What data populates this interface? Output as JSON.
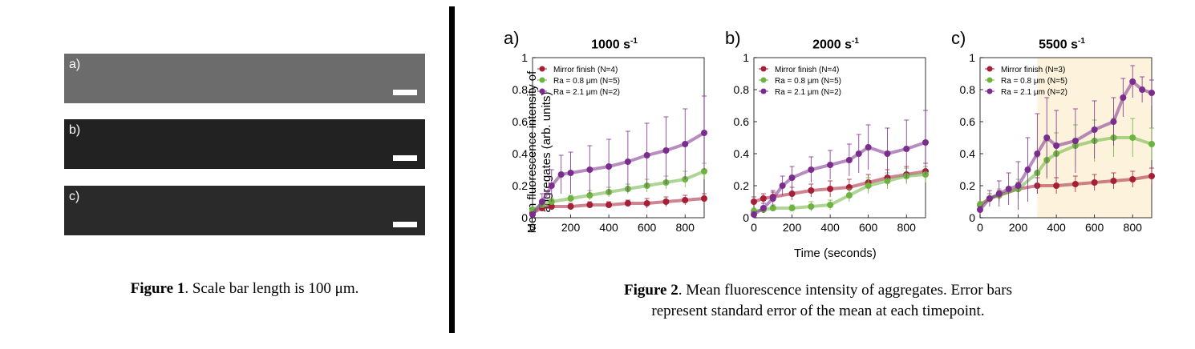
{
  "figure1": {
    "panels": [
      {
        "label": "a)",
        "tone": "#6a6a6a"
      },
      {
        "label": "b)",
        "tone": "#2a2a2a"
      },
      {
        "label": "c)",
        "tone": "#303030"
      }
    ],
    "caption_bold": "Figure 1",
    "caption_text": ". Scale bar length is 100 μm."
  },
  "figure2": {
    "ylabel": "Mean fluorescence intensity of aggregates (arb. units)",
    "xlabel": "Time (seconds)",
    "caption_bold": "Figure 2",
    "caption_line1": ". Mean fluorescence intensity of aggregates. Error bars",
    "caption_line2": "represent standard error of the mean at each timepoint.",
    "colors": {
      "mirror": "#a51f36",
      "ra08": "#6cb33f",
      "ra21": "#7b2d8e",
      "shade": "#fdf3dc"
    }
  },
  "chart_data": [
    {
      "type": "scatter",
      "panel_label": "a)",
      "title_base": "1000 s",
      "title_exp": "-1",
      "xlim": [
        0,
        900
      ],
      "ylim": [
        0,
        1
      ],
      "xticks": [
        0,
        200,
        400,
        600,
        800
      ],
      "yticks": [
        0,
        0.2,
        0.4,
        0.6,
        0.8,
        1
      ],
      "shaded_from": null,
      "series": [
        {
          "name": "Mirror finish (N=4)",
          "key": "mirror",
          "x": [
            0,
            50,
            100,
            200,
            300,
            400,
            500,
            600,
            700,
            800,
            900
          ],
          "y": [
            0.03,
            0.06,
            0.07,
            0.07,
            0.08,
            0.08,
            0.09,
            0.09,
            0.1,
            0.11,
            0.12
          ],
          "err": [
            0.01,
            0.01,
            0.02,
            0.02,
            0.02,
            0.02,
            0.02,
            0.03,
            0.03,
            0.03,
            0.03
          ]
        },
        {
          "name": "Ra = 0.8 μm (N=5)",
          "key": "ra08",
          "x": [
            0,
            50,
            100,
            200,
            300,
            400,
            500,
            600,
            700,
            800,
            900
          ],
          "y": [
            0.05,
            0.08,
            0.1,
            0.12,
            0.14,
            0.16,
            0.18,
            0.2,
            0.22,
            0.24,
            0.29
          ],
          "err": [
            0.01,
            0.02,
            0.02,
            0.02,
            0.03,
            0.03,
            0.03,
            0.04,
            0.04,
            0.05,
            0.05
          ]
        },
        {
          "name": "Ra = 2.1 μm (N=2)",
          "key": "ra21",
          "x": [
            0,
            50,
            100,
            150,
            200,
            300,
            400,
            500,
            600,
            700,
            800,
            900
          ],
          "y": [
            0.02,
            0.1,
            0.2,
            0.27,
            0.28,
            0.3,
            0.32,
            0.35,
            0.39,
            0.42,
            0.46,
            0.53
          ],
          "err": [
            0.01,
            0.05,
            0.1,
            0.12,
            0.13,
            0.15,
            0.17,
            0.19,
            0.2,
            0.21,
            0.22,
            0.23
          ]
        }
      ]
    },
    {
      "type": "scatter",
      "panel_label": "b)",
      "title_base": "2000 s",
      "title_exp": "-1",
      "xlim": [
        0,
        900
      ],
      "ylim": [
        0,
        1
      ],
      "xticks": [
        0,
        200,
        400,
        600,
        800
      ],
      "yticks": [
        0,
        0.2,
        0.4,
        0.6,
        0.8,
        1
      ],
      "shaded_from": null,
      "series": [
        {
          "name": "Mirror finish (N=4)",
          "key": "mirror",
          "x": [
            0,
            50,
            100,
            200,
            300,
            400,
            500,
            600,
            700,
            800,
            900
          ],
          "y": [
            0.1,
            0.12,
            0.13,
            0.15,
            0.17,
            0.18,
            0.19,
            0.22,
            0.25,
            0.27,
            0.29
          ],
          "err": [
            0.03,
            0.03,
            0.03,
            0.04,
            0.04,
            0.05,
            0.05,
            0.05,
            0.05,
            0.05,
            0.05
          ]
        },
        {
          "name": "Ra = 0.8 μm (N=5)",
          "key": "ra08",
          "x": [
            0,
            50,
            100,
            200,
            300,
            400,
            500,
            600,
            700,
            800,
            900
          ],
          "y": [
            0.04,
            0.05,
            0.06,
            0.06,
            0.07,
            0.08,
            0.14,
            0.2,
            0.23,
            0.26,
            0.27
          ],
          "err": [
            0.02,
            0.02,
            0.02,
            0.02,
            0.03,
            0.03,
            0.04,
            0.05,
            0.05,
            0.05,
            0.05
          ]
        },
        {
          "name": "Ra = 2.1 μm (N=2)",
          "key": "ra21",
          "x": [
            0,
            50,
            100,
            150,
            200,
            300,
            400,
            500,
            550,
            600,
            700,
            800,
            900
          ],
          "y": [
            0.02,
            0.06,
            0.12,
            0.2,
            0.25,
            0.3,
            0.33,
            0.36,
            0.4,
            0.44,
            0.4,
            0.43,
            0.47
          ],
          "err": [
            0.01,
            0.03,
            0.05,
            0.06,
            0.07,
            0.08,
            0.09,
            0.1,
            0.12,
            0.14,
            0.16,
            0.18,
            0.2
          ]
        }
      ]
    },
    {
      "type": "scatter",
      "panel_label": "c)",
      "title_base": "5500 s",
      "title_exp": "-1",
      "xlim": [
        0,
        900
      ],
      "ylim": [
        0,
        1
      ],
      "xticks": [
        0,
        200,
        400,
        600,
        800
      ],
      "yticks": [
        0,
        0.2,
        0.4,
        0.6,
        0.8,
        1
      ],
      "shaded_from": 300,
      "series": [
        {
          "name": "Mirror finish (N=3)",
          "key": "mirror",
          "x": [
            0,
            50,
            100,
            200,
            300,
            400,
            500,
            600,
            700,
            800,
            900
          ],
          "y": [
            0.08,
            0.12,
            0.14,
            0.18,
            0.2,
            0.2,
            0.21,
            0.22,
            0.23,
            0.24,
            0.26
          ],
          "err": [
            0.02,
            0.03,
            0.03,
            0.04,
            0.05,
            0.05,
            0.05,
            0.05,
            0.05,
            0.05,
            0.05
          ]
        },
        {
          "name": "Ra = 0.8 μm (N=5)",
          "key": "ra08",
          "x": [
            0,
            50,
            100,
            200,
            300,
            350,
            400,
            500,
            600,
            700,
            800,
            900
          ],
          "y": [
            0.08,
            0.12,
            0.14,
            0.18,
            0.28,
            0.36,
            0.4,
            0.45,
            0.48,
            0.5,
            0.5,
            0.46
          ],
          "err": [
            0.02,
            0.03,
            0.04,
            0.06,
            0.1,
            0.12,
            0.13,
            0.13,
            0.13,
            0.12,
            0.12,
            0.1
          ]
        },
        {
          "name": "Ra = 2.1 μm (N=2)",
          "key": "ra21",
          "x": [
            0,
            50,
            100,
            150,
            200,
            250,
            300,
            350,
            400,
            500,
            600,
            700,
            750,
            800,
            850,
            900
          ],
          "y": [
            0.05,
            0.12,
            0.15,
            0.18,
            0.2,
            0.3,
            0.4,
            0.5,
            0.45,
            0.48,
            0.55,
            0.6,
            0.75,
            0.85,
            0.8,
            0.78
          ],
          "err": [
            0.02,
            0.05,
            0.08,
            0.1,
            0.15,
            0.2,
            0.25,
            0.25,
            0.22,
            0.2,
            0.18,
            0.15,
            0.12,
            0.1,
            0.08,
            0.08
          ]
        }
      ]
    }
  ]
}
